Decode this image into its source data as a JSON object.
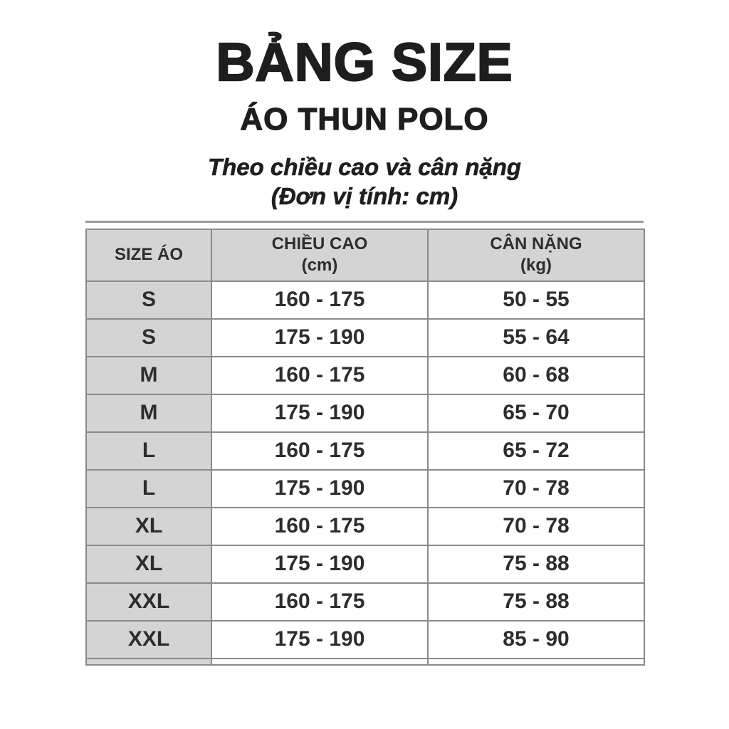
{
  "page": {
    "title": "BẢNG SIZE",
    "subtitle": "ÁO THUN POLO",
    "tagline": "Theo chiều cao và cân nặng",
    "unit_note": "(Đơn vị tính: cm)"
  },
  "table": {
    "headers": [
      {
        "label": "SIZE ÁO",
        "sub": ""
      },
      {
        "label": "CHIỀU CAO",
        "sub": "(cm)"
      },
      {
        "label": "CÂN NẶNG",
        "sub": "(kg)"
      }
    ],
    "rows": [
      {
        "size": "S",
        "height": "160 - 175",
        "weight": "50 - 55"
      },
      {
        "size": "S",
        "height": "175 - 190",
        "weight": "55 - 64"
      },
      {
        "size": "M",
        "height": "160 - 175",
        "weight": "60 - 68"
      },
      {
        "size": "M",
        "height": "175 - 190",
        "weight": "65 - 70"
      },
      {
        "size": "L",
        "height": "160 - 175",
        "weight": "65 - 72"
      },
      {
        "size": "L",
        "height": "175 - 190",
        "weight": "70 - 78"
      },
      {
        "size": "XL",
        "height": "160 - 175",
        "weight": "70 - 78"
      },
      {
        "size": "XL",
        "height": "175 - 190",
        "weight": "75 - 88"
      },
      {
        "size": "XXL",
        "height": "160 - 175",
        "weight": "75 - 88"
      },
      {
        "size": "XXL",
        "height": "175 - 190",
        "weight": "85 - 90"
      }
    ]
  },
  "colors": {
    "background": "#ffffff",
    "header_fill": "#d4d4d4",
    "size_column_fill": "#d4d4d4",
    "grid_line": "#8a8a8a",
    "outer_border": "#7d7d7d",
    "text": "#2d2d2d"
  }
}
